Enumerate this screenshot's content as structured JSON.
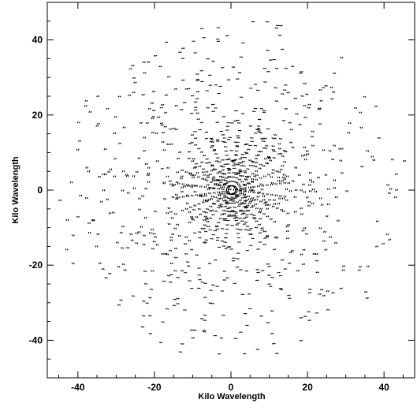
{
  "chart_data": {
    "type": "scatter",
    "title": "",
    "xlabel": "Kilo Wavelength",
    "ylabel": "Kilo Wavelength",
    "xlim": [
      -48,
      48
    ],
    "ylim": [
      -50,
      50
    ],
    "xticks": [
      -40,
      -20,
      0,
      20,
      40
    ],
    "yticks": [
      -40,
      -20,
      0,
      20,
      40
    ],
    "xtick_labels": [
      "-40",
      "-20",
      "0",
      "20",
      "40"
    ],
    "ytick_labels": [
      "-40",
      "-20",
      "0",
      "20",
      "40"
    ],
    "grid": false,
    "legend": false,
    "marker_color": "#000000",
    "note": "uv-coverage of a radio interferometer; points are short paired tracks scattered on a disc of radius ~45 kilo wavelength, denser toward the center, with a radial star pattern through the origin",
    "generator": {
      "seed": 7,
      "rings": [
        {
          "r_min": 0,
          "r_max": 8,
          "count": 140
        },
        {
          "r_min": 8,
          "r_max": 18,
          "count": 230
        },
        {
          "r_min": 18,
          "r_max": 30,
          "count": 260
        },
        {
          "r_min": 30,
          "r_max": 40,
          "count": 170
        },
        {
          "r_min": 40,
          "r_max": 46,
          "count": 70
        }
      ],
      "spokes": 12,
      "points_per_spoke": 12,
      "spoke_r_max": 14
    }
  }
}
